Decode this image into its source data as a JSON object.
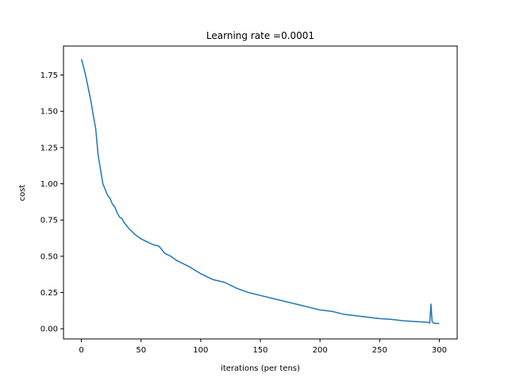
{
  "chart_data": {
    "type": "line",
    "title": "Learning rate =0.0001",
    "xlabel": "iterations (per tens)",
    "ylabel": "cost",
    "xlim": [
      -15,
      315
    ],
    "ylim": [
      -0.07,
      1.95
    ],
    "xticks": [
      0,
      50,
      100,
      150,
      200,
      250,
      300
    ],
    "xtick_labels": [
      "0",
      "50",
      "100",
      "150",
      "200",
      "250",
      "300"
    ],
    "yticks": [
      0.0,
      0.25,
      0.5,
      0.75,
      1.0,
      1.25,
      1.5,
      1.75
    ],
    "ytick_labels": [
      "0.00",
      "0.25",
      "0.50",
      "0.75",
      "1.00",
      "1.25",
      "1.50",
      "1.75"
    ],
    "grid": false,
    "color": "#1f77b4",
    "series": [
      {
        "x": [
          0,
          2,
          4,
          6,
          8,
          10,
          12,
          14,
          16,
          18,
          20,
          22,
          24,
          26,
          28,
          30,
          32,
          34,
          36,
          38,
          40,
          45,
          50,
          55,
          60,
          65,
          70,
          75,
          80,
          90,
          100,
          110,
          120,
          130,
          140,
          150,
          160,
          170,
          180,
          190,
          200,
          210,
          220,
          230,
          240,
          250,
          260,
          270,
          280,
          290,
          292,
          293,
          294,
          295,
          296,
          298,
          300
        ],
        "y": [
          1.86,
          1.8,
          1.73,
          1.65,
          1.57,
          1.47,
          1.38,
          1.2,
          1.1,
          1.0,
          0.96,
          0.92,
          0.9,
          0.86,
          0.84,
          0.8,
          0.77,
          0.76,
          0.73,
          0.71,
          0.69,
          0.65,
          0.62,
          0.6,
          0.58,
          0.57,
          0.52,
          0.5,
          0.47,
          0.43,
          0.38,
          0.34,
          0.32,
          0.28,
          0.25,
          0.23,
          0.21,
          0.19,
          0.17,
          0.15,
          0.13,
          0.12,
          0.1,
          0.09,
          0.08,
          0.07,
          0.065,
          0.055,
          0.05,
          0.045,
          0.04,
          0.17,
          0.05,
          0.04,
          0.038,
          0.037,
          0.037
        ]
      }
    ]
  }
}
